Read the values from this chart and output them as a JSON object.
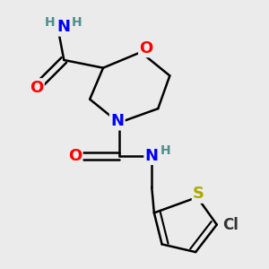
{
  "background_color": "#ebebeb",
  "bond_color": "#000000",
  "bond_width": 1.8,
  "atom_colors": {
    "O": "#ff0000",
    "N": "#0000ff",
    "S": "#aaaa00",
    "Cl": "#333333",
    "C": "#000000",
    "H": "#4a9090"
  },
  "font_size_atoms": 13,
  "font_size_H": 10,
  "font_size_Cl": 12
}
